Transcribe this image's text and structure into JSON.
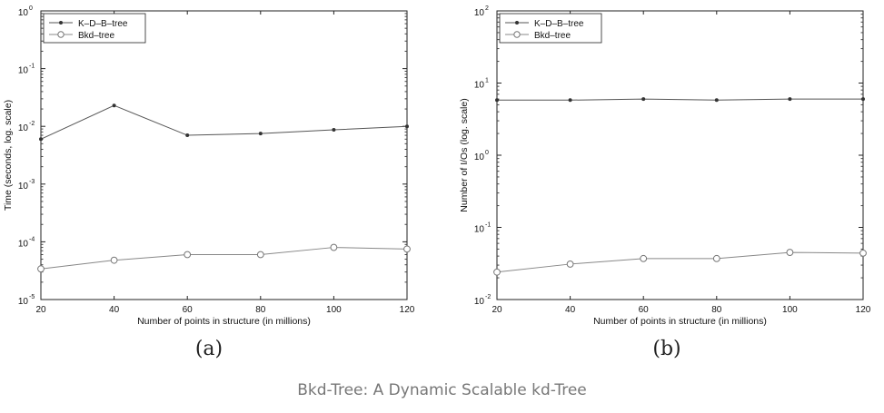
{
  "caption": "Bkd-Tree: A Dynamic Scalable kd-Tree",
  "chart_data": [
    {
      "type": "line",
      "panel_label": "(a)",
      "xlabel": "Number of points in structure (in millions)",
      "ylabel": "Time (seconds, log. scale)",
      "yscale": "log",
      "x": [
        20,
        40,
        60,
        80,
        100,
        120
      ],
      "xticks": [
        "20",
        "40",
        "60",
        "80",
        "100",
        "120"
      ],
      "xlim": [
        20,
        120
      ],
      "ylim_exp": [
        -5,
        0
      ],
      "yticks": [
        "10",
        "10",
        "10",
        "10",
        "10",
        "10"
      ],
      "ytick_exps": [
        "-5",
        "-4",
        "-3",
        "-2",
        "-1",
        "0"
      ],
      "legend": "top-left",
      "series": [
        {
          "name": "K–D–B–tree",
          "marker": "star",
          "values": [
            0.006,
            0.023,
            0.007,
            0.0075,
            0.0087,
            0.01
          ]
        },
        {
          "name": "Bkd–tree",
          "marker": "circle",
          "values": [
            3.4e-05,
            4.8e-05,
            6e-05,
            6e-05,
            8e-05,
            7.5e-05
          ]
        }
      ]
    },
    {
      "type": "line",
      "panel_label": "(b)",
      "xlabel": "Number of points in structure (in millions)",
      "ylabel": "Number of I/Os (log. scale)",
      "yscale": "log",
      "x": [
        20,
        40,
        60,
        80,
        100,
        120
      ],
      "xticks": [
        "20",
        "40",
        "60",
        "80",
        "100",
        "120"
      ],
      "xlim": [
        20,
        120
      ],
      "ylim_exp": [
        -2,
        2
      ],
      "yticks": [
        "10",
        "10",
        "10",
        "10",
        "10"
      ],
      "ytick_exps": [
        "-2",
        "-1",
        "0",
        "1",
        "2"
      ],
      "legend": "top-left",
      "series": [
        {
          "name": "K–D–B–tree",
          "marker": "star",
          "values": [
            5.8,
            5.8,
            6.0,
            5.8,
            6.0,
            6.0
          ]
        },
        {
          "name": "Bkd–tree",
          "marker": "circle",
          "values": [
            0.024,
            0.031,
            0.037,
            0.037,
            0.045,
            0.044
          ]
        }
      ]
    }
  ]
}
